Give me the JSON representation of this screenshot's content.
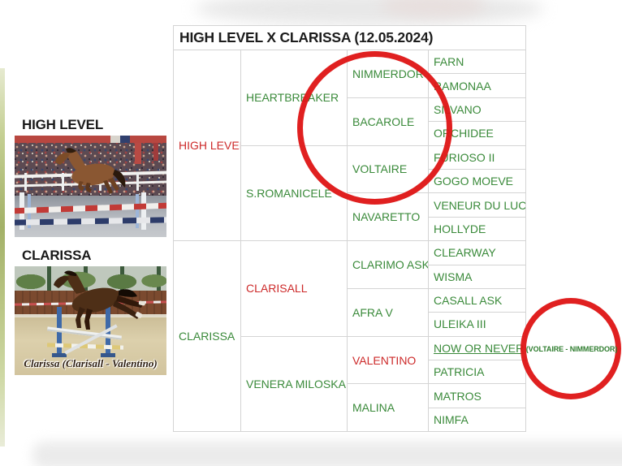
{
  "title": "HIGH LEVEL X CLARISSA (12.05.2024)",
  "photos": {
    "sire": {
      "label": "HIGH LEVEL"
    },
    "dam": {
      "label": "CLARISSA",
      "caption": "Clarissa (Clarisall - Valentino)"
    }
  },
  "pedigree": {
    "columns": [
      {
        "generation": 1,
        "cells": [
          {
            "name": "HIGH LEVEL",
            "color": "red",
            "span": 8
          },
          {
            "name": "CLARISSA",
            "color": "green",
            "span": 8
          }
        ]
      },
      {
        "generation": 2,
        "cells": [
          {
            "name": "HEARTBREAKER",
            "color": "green",
            "span": 4
          },
          {
            "name": "S.ROMANICELE",
            "color": "green",
            "span": 4
          },
          {
            "name": "CLARISALL",
            "color": "red",
            "span": 4
          },
          {
            "name": "VENERA MILOSKA",
            "color": "green",
            "span": 4
          }
        ]
      },
      {
        "generation": 3,
        "cells": [
          {
            "name": "NIMMERDOR",
            "color": "green",
            "span": 2
          },
          {
            "name": "BACAROLE",
            "color": "green",
            "span": 2
          },
          {
            "name": "VOLTAIRE",
            "color": "green",
            "span": 2
          },
          {
            "name": "NAVARETTO",
            "color": "green",
            "span": 2
          },
          {
            "name": "CLARIMO ASK",
            "color": "green",
            "span": 2
          },
          {
            "name": "AFRA V",
            "color": "green",
            "span": 2
          },
          {
            "name": "VALENTINO",
            "color": "red",
            "span": 2
          },
          {
            "name": "MALINA",
            "color": "green",
            "span": 2
          }
        ]
      },
      {
        "generation": 4,
        "cells": [
          {
            "name": "FARN",
            "color": "green",
            "span": 1
          },
          {
            "name": "RAMONAA",
            "color": "green",
            "span": 1
          },
          {
            "name": "SILVANO",
            "color": "green",
            "span": 1
          },
          {
            "name": "ORCHIDEE",
            "color": "green",
            "span": 1
          },
          {
            "name": "FURIOSO II",
            "color": "green",
            "span": 1
          },
          {
            "name": "GOGO MOEVE",
            "color": "green",
            "span": 1
          },
          {
            "name": "VENEUR DU LUC",
            "color": "green",
            "span": 1
          },
          {
            "name": "HOLLYDE",
            "color": "green",
            "span": 1
          },
          {
            "name": "CLEARWAY",
            "color": "green",
            "span": 1
          },
          {
            "name": "WISMA",
            "color": "green",
            "span": 1
          },
          {
            "name": "CASALL ASK",
            "color": "green",
            "span": 1
          },
          {
            "name": "ULEIKA III",
            "color": "green",
            "span": 1
          },
          {
            "name": "NOW OR NEVER",
            "color": "green",
            "span": 1,
            "underline": true,
            "link": true
          },
          {
            "name": "PATRICIA",
            "color": "green",
            "span": 1
          },
          {
            "name": "MATROS",
            "color": "green",
            "span": 1
          },
          {
            "name": "NIMFA",
            "color": "green",
            "span": 1
          }
        ]
      }
    ]
  },
  "annotations": {
    "inbreeding_note": "(VOLTAIRE - NIMMERDOR)"
  },
  "colors": {
    "green": "#3a8a3a",
    "red": "#cd2a2a",
    "circle_red": "#de1414",
    "table_border": "#d4d4d4",
    "title_text": "#1c1c1c"
  }
}
